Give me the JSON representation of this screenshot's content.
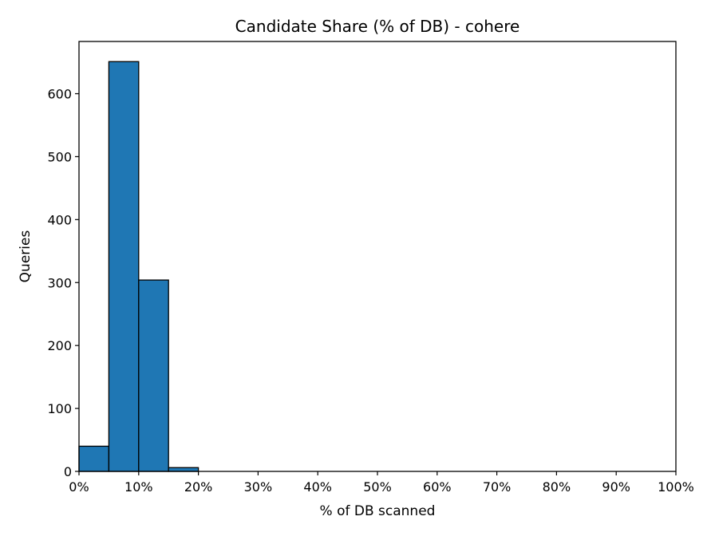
{
  "chart_data": {
    "type": "bar",
    "title": "Candidate Share (% of DB) - cohere",
    "xlabel": "% of DB scanned",
    "ylabel": "Queries",
    "bin_edges": [
      0,
      5,
      10,
      15,
      20
    ],
    "values": [
      40,
      651,
      304,
      6
    ],
    "xlim": [
      0,
      100
    ],
    "ylim": [
      0,
      683
    ],
    "x_ticks": [
      0,
      10,
      20,
      30,
      40,
      50,
      60,
      70,
      80,
      90,
      100
    ],
    "x_tick_labels": [
      "0%",
      "10%",
      "20%",
      "30%",
      "40%",
      "50%",
      "60%",
      "70%",
      "80%",
      "90%",
      "100%"
    ],
    "y_ticks": [
      0,
      100,
      200,
      300,
      400,
      500,
      600
    ],
    "y_tick_labels": [
      "0",
      "100",
      "200",
      "300",
      "400",
      "500",
      "600"
    ],
    "grid": false,
    "bar_color": "#1f77b4",
    "edge_color": "#000000"
  }
}
